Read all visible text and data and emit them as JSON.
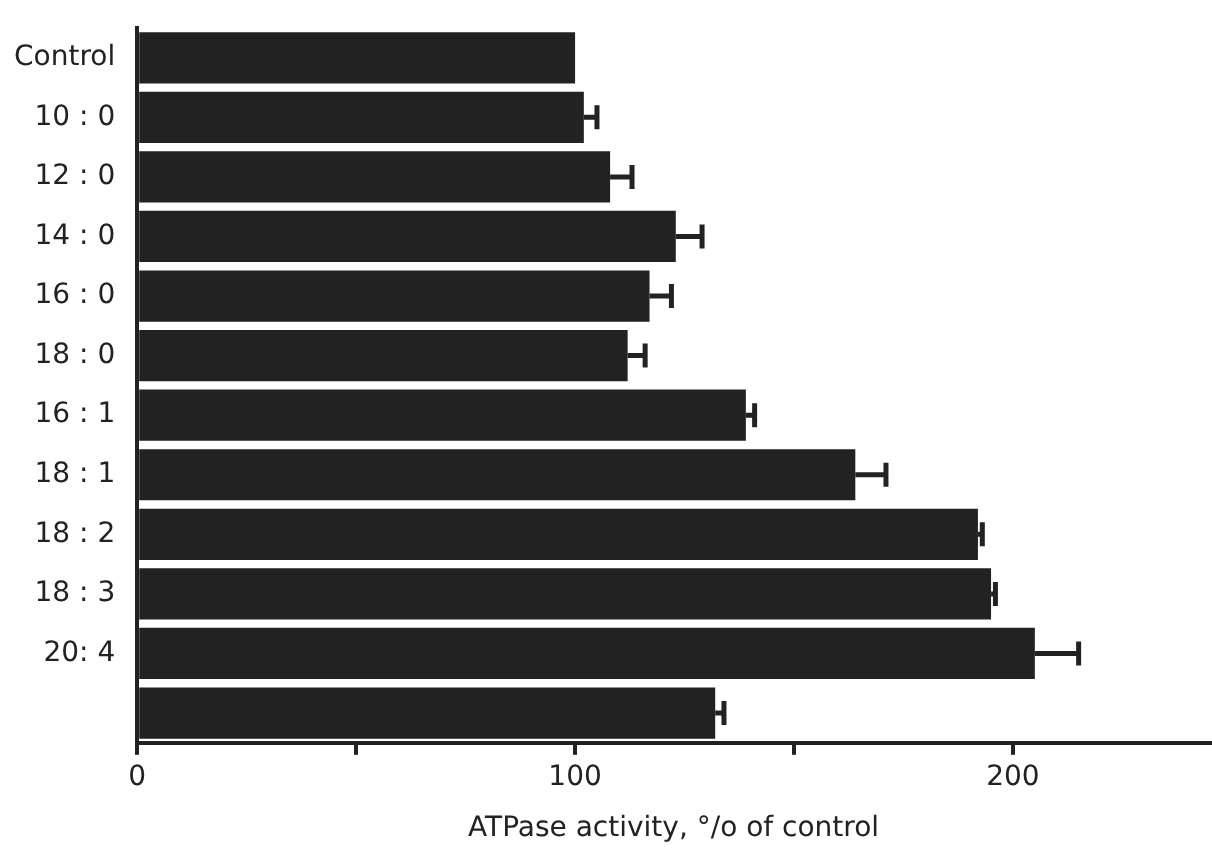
{
  "chart_data": {
    "type": "bar",
    "orientation": "horizontal",
    "xlabel": "ATPase activity, °/o of control",
    "categories": [
      "Control",
      "10 : 0",
      "12 : 0",
      "14 : 0",
      "16 : 0",
      "18 : 0",
      "16 : 1",
      "18 : 1",
      "18 : 2",
      "18 : 3",
      "20: 4",
      null
    ],
    "values": [
      100,
      102,
      108,
      123,
      117,
      112,
      139,
      164,
      192,
      195,
      205,
      132
    ],
    "errors": [
      null,
      [
        102,
        105
      ],
      [
        108,
        113
      ],
      [
        123,
        129
      ],
      [
        117,
        122
      ],
      [
        112,
        116
      ],
      [
        139,
        141
      ],
      [
        164,
        171
      ],
      [
        192,
        193
      ],
      [
        195,
        196
      ],
      [
        205,
        215
      ],
      [
        132,
        134
      ]
    ],
    "color": "#222222",
    "xlim": [
      0,
      245
    ],
    "xticks": [
      0,
      {
        "value": 50,
        "label": null
      },
      100,
      {
        "value": 150,
        "label": null
      },
      200
    ],
    "grid": false,
    "legend": false
  }
}
